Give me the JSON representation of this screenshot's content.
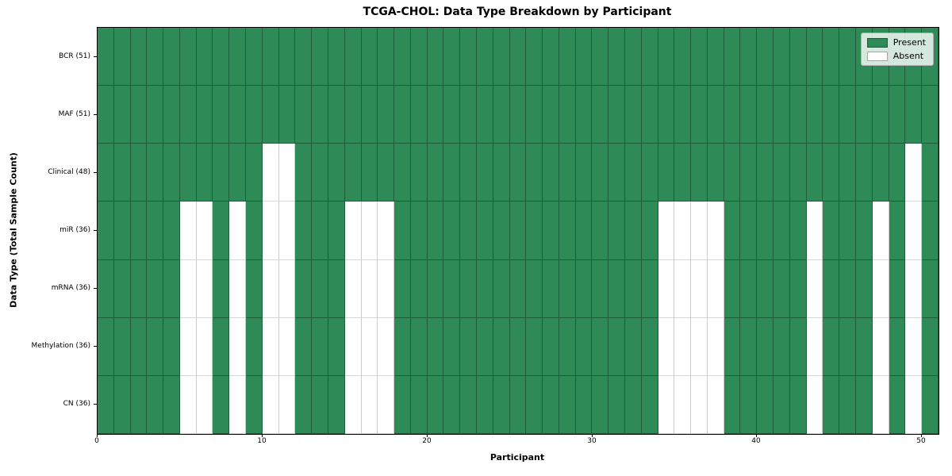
{
  "chart_data": {
    "type": "heatmap",
    "title": "TCGA-CHOL: Data Type Breakdown by Participant",
    "xlabel": "Participant",
    "ylabel": "Data Type (Total Sample Count)",
    "x_ticks": [
      0,
      10,
      20,
      30,
      40,
      50
    ],
    "x_range": [
      0,
      51
    ],
    "n_participants": 51,
    "cell_states": [
      "Present",
      "Absent"
    ],
    "rows": [
      {
        "label": "BCR (51)",
        "data_type": "BCR",
        "present_count": 51,
        "absent_participants": []
      },
      {
        "label": "MAF (51)",
        "data_type": "MAF",
        "present_count": 51,
        "absent_participants": []
      },
      {
        "label": "Clinical (48)",
        "data_type": "Clinical",
        "present_count": 48,
        "absent_participants": [
          10,
          11,
          49
        ]
      },
      {
        "label": "miR (36)",
        "data_type": "miR",
        "present_count": 36,
        "absent_participants": [
          5,
          6,
          8,
          10,
          11,
          15,
          16,
          17,
          34,
          35,
          36,
          37,
          43,
          47,
          49
        ]
      },
      {
        "label": "mRNA (36)",
        "data_type": "mRNA",
        "present_count": 36,
        "absent_participants": [
          5,
          6,
          8,
          10,
          11,
          15,
          16,
          17,
          34,
          35,
          36,
          37,
          43,
          47,
          49
        ]
      },
      {
        "label": "Methylation (36)",
        "data_type": "Methylation",
        "present_count": 36,
        "absent_participants": [
          5,
          6,
          8,
          10,
          11,
          15,
          16,
          17,
          34,
          35,
          36,
          37,
          43,
          47,
          49
        ]
      },
      {
        "label": "CN (36)",
        "data_type": "CN",
        "present_count": 36,
        "absent_participants": [
          5,
          6,
          8,
          10,
          11,
          15,
          16,
          17,
          34,
          35,
          36,
          37,
          43,
          47,
          49
        ]
      }
    ],
    "legend": {
      "position": "upper right",
      "entries": [
        {
          "label": "Present",
          "color": "#2E8B57"
        },
        {
          "label": "Absent",
          "color": "#FFFFFF"
        }
      ]
    },
    "colors": {
      "present": "#2E8B57",
      "absent": "#FFFFFF"
    },
    "grid": true
  }
}
